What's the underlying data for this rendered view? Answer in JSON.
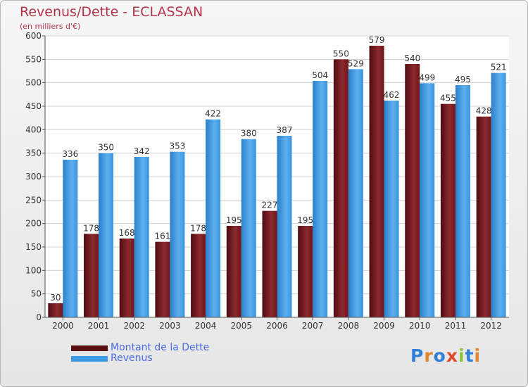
{
  "chart_data": {
    "type": "bar",
    "title": "Revenus/Dette - ECLASSAN",
    "subtitle": "(en milliers d'€)",
    "categories": [
      "2000",
      "2001",
      "2002",
      "2003",
      "2004",
      "2005",
      "2006",
      "2007",
      "2008",
      "2009",
      "2010",
      "2011",
      "2012"
    ],
    "series": [
      {
        "name": "Montant de la Dette",
        "color": "#7a1a1e",
        "values": [
          30,
          178,
          168,
          161,
          178,
          195,
          227,
          195,
          550,
          579,
          540,
          455,
          428
        ]
      },
      {
        "name": "Revenus",
        "color": "#3d9be3",
        "values": [
          336,
          350,
          342,
          353,
          422,
          380,
          387,
          504,
          529,
          462,
          499,
          495,
          521
        ]
      }
    ],
    "ylim": [
      0,
      600
    ],
    "yticks": [
      0,
      50,
      100,
      150,
      200,
      250,
      300,
      350,
      400,
      450,
      500,
      550,
      600
    ],
    "grid": true,
    "legend_position": "bottom-left"
  },
  "logo": {
    "letters": [
      {
        "ch": "P",
        "color": "#2f7fd6"
      },
      {
        "ch": "r",
        "color": "#e0852a"
      },
      {
        "ch": "o",
        "color": "#2f7fd6"
      },
      {
        "ch": "x",
        "color": "#e04a2a"
      },
      {
        "ch": "i",
        "color": "#8ac43a"
      },
      {
        "ch": "t",
        "color": "#2f7fd6"
      },
      {
        "ch": "i",
        "color": "#e0852a"
      }
    ]
  }
}
